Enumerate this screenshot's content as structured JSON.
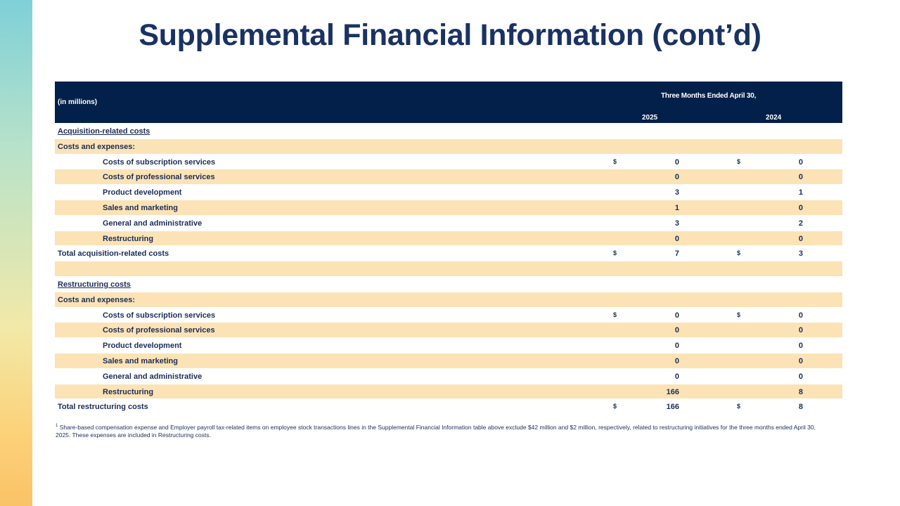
{
  "title": "Supplemental Financial Information (cont’d)",
  "header": {
    "units": "(in millions)",
    "period": "Three Months Ended April 30,",
    "year1": "2025",
    "year2": "2024"
  },
  "rows": [
    {
      "label": "Acquisition-related costs",
      "type": "section",
      "shade": false,
      "cur1": "",
      "v1": "",
      "cur2": "",
      "v2": ""
    },
    {
      "label": "Costs and expenses:",
      "type": "plain",
      "shade": true,
      "cur1": "",
      "v1": "",
      "cur2": "",
      "v2": ""
    },
    {
      "label": "Costs of subscription services",
      "type": "indent",
      "shade": false,
      "cur1": "$",
      "v1": "0",
      "cur2": "$",
      "v2": "0"
    },
    {
      "label": "Costs of professional services",
      "type": "indent",
      "shade": true,
      "cur1": "",
      "v1": "0",
      "cur2": "",
      "v2": "0"
    },
    {
      "label": "Product development",
      "type": "indent",
      "shade": false,
      "cur1": "",
      "v1": "3",
      "cur2": "",
      "v2": "1"
    },
    {
      "label": "Sales and marketing",
      "type": "indent",
      "shade": true,
      "cur1": "",
      "v1": "1",
      "cur2": "",
      "v2": "0"
    },
    {
      "label": "General and administrative",
      "type": "indent",
      "shade": false,
      "cur1": "",
      "v1": "3",
      "cur2": "",
      "v2": "2"
    },
    {
      "label": "Restructuring",
      "type": "indent",
      "shade": true,
      "cur1": "",
      "v1": "0",
      "cur2": "",
      "v2": "0"
    },
    {
      "label": "Total acquisition-related costs",
      "type": "plain",
      "shade": false,
      "cur1": "$",
      "v1": "7",
      "cur2": "$",
      "v2": "3"
    },
    {
      "label": "",
      "type": "plain",
      "shade": true,
      "cur1": "",
      "v1": "",
      "cur2": "",
      "v2": ""
    },
    {
      "label": "Restructuring costs",
      "type": "section",
      "shade": false,
      "cur1": "",
      "v1": "",
      "cur2": "",
      "v2": ""
    },
    {
      "label": "Costs and expenses:",
      "type": "plain",
      "shade": true,
      "cur1": "",
      "v1": "",
      "cur2": "",
      "v2": ""
    },
    {
      "label": "Costs of subscription services",
      "type": "indent",
      "shade": false,
      "cur1": "$",
      "v1": "0",
      "cur2": "$",
      "v2": "0"
    },
    {
      "label": "Costs of professional services",
      "type": "indent",
      "shade": true,
      "cur1": "",
      "v1": "0",
      "cur2": "",
      "v2": "0"
    },
    {
      "label": "Product development",
      "type": "indent",
      "shade": false,
      "cur1": "",
      "v1": "0",
      "cur2": "",
      "v2": "0"
    },
    {
      "label": "Sales and marketing",
      "type": "indent",
      "shade": true,
      "cur1": "",
      "v1": "0",
      "cur2": "",
      "v2": "0"
    },
    {
      "label": "General and administrative",
      "type": "indent",
      "shade": false,
      "cur1": "",
      "v1": "0",
      "cur2": "",
      "v2": "0"
    },
    {
      "label": "Restructuring",
      "type": "indent",
      "shade": true,
      "cur1": "",
      "v1": "166",
      "cur2": "",
      "v2": "8"
    },
    {
      "label": "Total restructuring costs",
      "type": "plain",
      "shade": false,
      "cur1": "$",
      "v1": "166",
      "cur2": "$",
      "v2": "8"
    }
  ],
  "footnote": {
    "marker": "1",
    "text": "Share-based compensation expense and Employer payroll tax-related items on employee stock transactions lines in the Supplemental Financial Information table above exclude $42 million and $2 million, respectively, related to restructuring initiatives for the three months ended April 30, 2025. These expenses are included in Restructuring costs."
  },
  "colors": {
    "header_bg": "#03204a",
    "row_shade": "#fbe3b6",
    "title": "#1a3263"
  }
}
